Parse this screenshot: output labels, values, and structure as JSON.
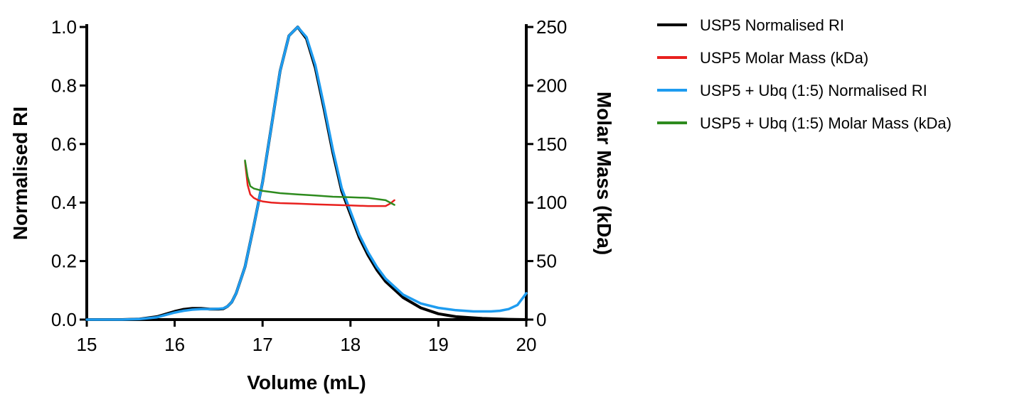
{
  "chart_data": {
    "type": "line",
    "xlabel": "Volume (mL)",
    "ylabel_left": "Normalised RI",
    "ylabel_right": "Molar Mass (kDa)",
    "xlim": [
      15,
      20
    ],
    "ylim_left": [
      0,
      1.0
    ],
    "ylim_right": [
      0,
      250
    ],
    "x_ticks": [
      "15",
      "16",
      "17",
      "18",
      "19",
      "20"
    ],
    "y_ticks_left": [
      "0.0",
      "0.2",
      "0.4",
      "0.6",
      "0.8",
      "1.0"
    ],
    "y_ticks_right": [
      "0",
      "50",
      "100",
      "150",
      "200",
      "250"
    ],
    "grid": false,
    "legend_position": "right",
    "series": [
      {
        "name": "USP5 Normalised RI",
        "axis": "left",
        "color": "#000000",
        "x": [
          15.0,
          15.4,
          15.6,
          15.8,
          16.0,
          16.1,
          16.2,
          16.3,
          16.4,
          16.5,
          16.55,
          16.6,
          16.65,
          16.7,
          16.8,
          16.9,
          17.0,
          17.1,
          17.2,
          17.3,
          17.4,
          17.5,
          17.6,
          17.7,
          17.8,
          17.9,
          18.0,
          18.1,
          18.2,
          18.3,
          18.4,
          18.6,
          18.8,
          19.0,
          19.2,
          19.5,
          19.8,
          20.0
        ],
        "y": [
          0.0,
          0.0,
          0.002,
          0.01,
          0.028,
          0.035,
          0.038,
          0.038,
          0.036,
          0.036,
          0.037,
          0.045,
          0.06,
          0.09,
          0.18,
          0.32,
          0.47,
          0.66,
          0.85,
          0.97,
          1.0,
          0.96,
          0.86,
          0.72,
          0.57,
          0.44,
          0.36,
          0.28,
          0.22,
          0.17,
          0.13,
          0.075,
          0.04,
          0.02,
          0.01,
          0.004,
          0.001,
          0.0
        ]
      },
      {
        "name": "USP5 Molar Mass (kDa)",
        "axis": "right",
        "color": "#e8201e",
        "x": [
          16.8,
          16.83,
          16.86,
          16.9,
          16.95,
          17.0,
          17.1,
          17.2,
          17.4,
          17.6,
          17.8,
          18.0,
          18.2,
          18.4,
          18.45,
          18.5
        ],
        "y": [
          135,
          115,
          107,
          104,
          102,
          101,
          100,
          99.5,
          99,
          98.5,
          98,
          97.5,
          97,
          97,
          99,
          102
        ]
      },
      {
        "name": "USP5 + Ubq (1:5) Normalised RI",
        "axis": "left",
        "color": "#1e9cf0",
        "x": [
          15.0,
          15.4,
          15.6,
          15.8,
          16.0,
          16.1,
          16.2,
          16.3,
          16.4,
          16.5,
          16.55,
          16.6,
          16.65,
          16.7,
          16.8,
          16.9,
          17.0,
          17.1,
          17.2,
          17.3,
          17.4,
          17.5,
          17.6,
          17.7,
          17.8,
          17.9,
          18.0,
          18.1,
          18.2,
          18.3,
          18.4,
          18.6,
          18.8,
          19.0,
          19.2,
          19.4,
          19.6,
          19.7,
          19.8,
          19.9,
          20.0
        ],
        "y": [
          0.0,
          0.0,
          0.002,
          0.008,
          0.024,
          0.03,
          0.034,
          0.036,
          0.036,
          0.037,
          0.038,
          0.045,
          0.06,
          0.09,
          0.18,
          0.32,
          0.47,
          0.66,
          0.85,
          0.97,
          1.0,
          0.965,
          0.87,
          0.73,
          0.58,
          0.45,
          0.37,
          0.29,
          0.23,
          0.18,
          0.14,
          0.085,
          0.055,
          0.04,
          0.032,
          0.028,
          0.028,
          0.03,
          0.036,
          0.05,
          0.09
        ]
      },
      {
        "name": "USP5 + Ubq (1:5) Molar Mass (kDa)",
        "axis": "right",
        "color": "#2e8b1e",
        "x": [
          16.8,
          16.83,
          16.86,
          16.9,
          16.95,
          17.0,
          17.1,
          17.2,
          17.4,
          17.6,
          17.8,
          18.0,
          18.2,
          18.4,
          18.45,
          18.5
        ],
        "y": [
          136,
          122,
          114,
          112,
          111,
          110,
          109,
          108,
          107,
          106,
          105,
          104.5,
          104,
          102,
          100,
          98
        ]
      }
    ]
  }
}
